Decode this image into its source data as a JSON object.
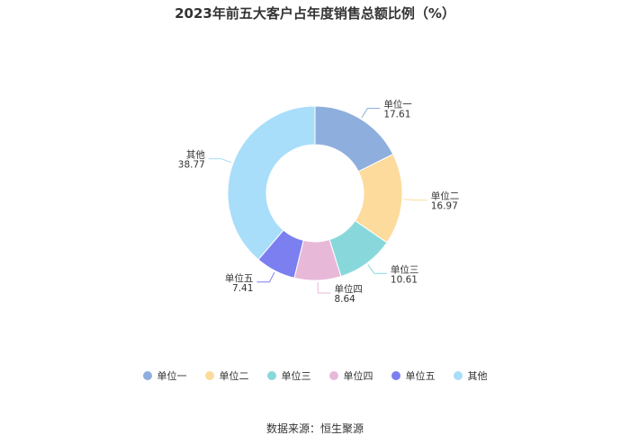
{
  "chart_data": {
    "type": "pie",
    "title": "2023年前五大客户占年度销售总额比例（%）",
    "categories": [
      "单位一",
      "单位二",
      "单位三",
      "单位四",
      "单位五",
      "其他"
    ],
    "values": [
      17.61,
      16.97,
      10.61,
      8.64,
      7.41,
      38.77
    ],
    "colors": [
      "#8eaedd",
      "#fddb9c",
      "#88d8db",
      "#e8b8d9",
      "#7b7ff0",
      "#a8defa"
    ],
    "legend_position": "bottom"
  },
  "source": "数据来源：恒生聚源"
}
